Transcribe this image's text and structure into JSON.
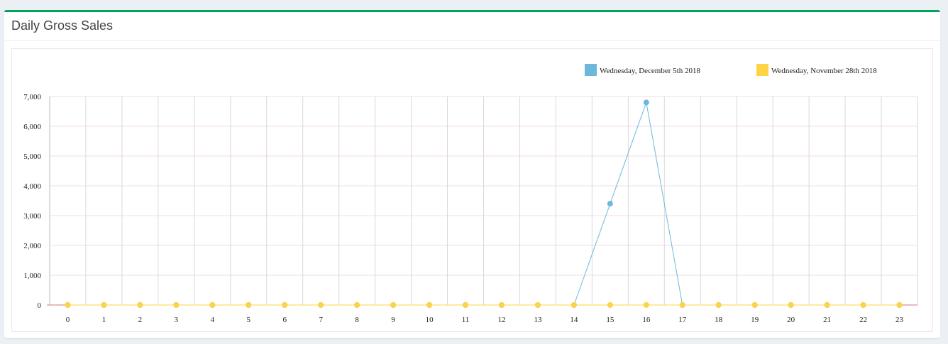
{
  "panel": {
    "title": "Daily Gross Sales"
  },
  "chart_data": {
    "type": "line",
    "title": "",
    "xlabel": "",
    "ylabel": "",
    "x": [
      0,
      1,
      2,
      3,
      4,
      5,
      6,
      7,
      8,
      9,
      10,
      11,
      12,
      13,
      14,
      15,
      16,
      17,
      18,
      19,
      20,
      21,
      22,
      23
    ],
    "ylim": [
      0,
      7000
    ],
    "yticks": [
      0,
      1000,
      2000,
      3000,
      4000,
      5000,
      6000,
      7000
    ],
    "ytick_labels": [
      "0",
      "1,000",
      "2,000",
      "3,000",
      "4,000",
      "5,000",
      "6,000",
      "7,000"
    ],
    "grid": true,
    "legend_position": "top-right",
    "series": [
      {
        "name": "Wednesday, December 5th 2018",
        "color": "#6cb8dc",
        "values": [
          0,
          0,
          0,
          0,
          0,
          0,
          0,
          0,
          0,
          0,
          0,
          0,
          0,
          0,
          0,
          3400,
          6800,
          0,
          0,
          0,
          0,
          0,
          0,
          0
        ]
      },
      {
        "name": "Wednesday, November 28th 2018",
        "color": "#fdd446",
        "values": [
          0,
          0,
          0,
          0,
          0,
          0,
          0,
          0,
          0,
          0,
          0,
          0,
          0,
          0,
          0,
          0,
          0,
          0,
          0,
          0,
          0,
          0,
          0,
          0
        ]
      }
    ]
  }
}
